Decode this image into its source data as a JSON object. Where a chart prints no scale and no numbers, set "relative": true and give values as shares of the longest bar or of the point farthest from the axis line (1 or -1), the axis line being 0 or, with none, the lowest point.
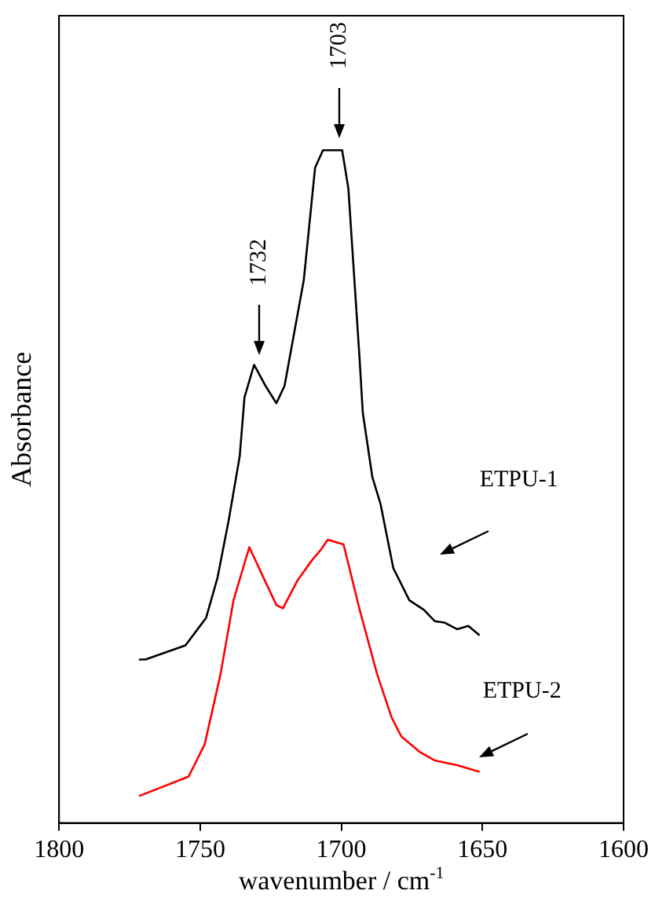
{
  "chart_data": {
    "type": "line",
    "xlabel": "wavenumber / cm$^{-1}$",
    "ylabel": "Absorbance",
    "relative": true,
    "xlim": [
      1800,
      1600
    ],
    "xticks": [
      1800,
      1750,
      1700,
      1650,
      1600
    ],
    "legend": false,
    "grid": false,
    "marker": "none",
    "line_style": "solid",
    "annotations": [
      "1732",
      "1703"
    ],
    "series": [
      {
        "name": "ETPU-1",
        "color": "#000000",
        "x": [
          1771.7,
          1769.4,
          1755.2,
          1747.9,
          1743.9,
          1739.9,
          1736.0,
          1734.3,
          1730.9,
          1726.9,
          1723.0,
          1720.1,
          1713.3,
          1709.3,
          1706.5,
          1699.7,
          1697.5,
          1693.5,
          1692.4,
          1689.0,
          1686.1,
          1681.6,
          1675.9,
          1670.8,
          1666.9,
          1663.5,
          1659.0,
          1655.0,
          1651.0
        ],
        "values": [
          0.243,
          0.243,
          0.264,
          0.305,
          0.364,
          0.45,
          0.545,
          0.633,
          0.681,
          0.65,
          0.624,
          0.65,
          0.807,
          0.974,
          1.0,
          1.0,
          0.943,
          0.688,
          0.61,
          0.514,
          0.474,
          0.379,
          0.331,
          0.317,
          0.3,
          0.298,
          0.288,
          0.293,
          0.279
        ]
      },
      {
        "name": "ETPU-2",
        "color": "#ff0000",
        "x": [
          1771.7,
          1754.1,
          1748.4,
          1742.8,
          1738.2,
          1732.6,
          1727.5,
          1723.0,
          1720.7,
          1715.6,
          1710.5,
          1707.1,
          1704.8,
          1699.2,
          1693.5,
          1687.3,
          1682.2,
          1678.8,
          1672.0,
          1666.9,
          1659.0,
          1651.0
        ],
        "values": [
          0.04,
          0.069,
          0.117,
          0.221,
          0.331,
          0.41,
          0.364,
          0.324,
          0.319,
          0.36,
          0.39,
          0.407,
          0.421,
          0.414,
          0.317,
          0.221,
          0.157,
          0.129,
          0.105,
          0.093,
          0.086,
          0.076
        ]
      }
    ]
  }
}
